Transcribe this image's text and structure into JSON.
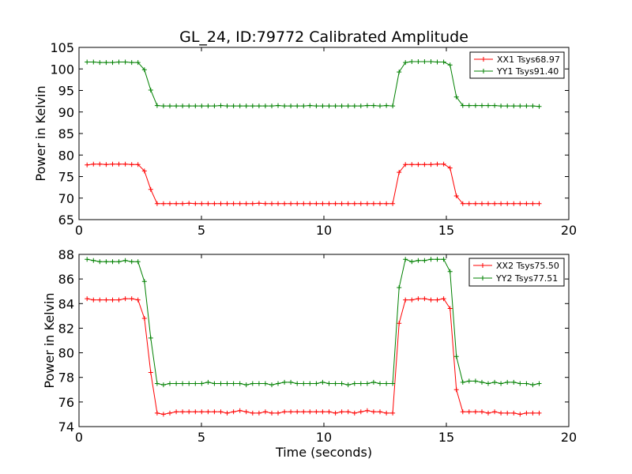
{
  "chart_data": [
    {
      "type": "line",
      "title": "GL_24, ID:79772 Calibrated Amplitude",
      "xlabel": "",
      "ylabel": "Power in Kelvin",
      "xlim": [
        0,
        20
      ],
      "ylim": [
        65,
        105
      ],
      "xticks": [
        0,
        5,
        10,
        15,
        20
      ],
      "yticks": [
        65,
        70,
        75,
        80,
        85,
        90,
        95,
        100,
        105
      ],
      "legend_position": "top-right",
      "grid": false,
      "x": [
        0.33,
        0.59,
        0.85,
        1.11,
        1.37,
        1.63,
        1.89,
        2.15,
        2.41,
        2.67,
        2.93,
        3.19,
        3.45,
        3.71,
        3.97,
        4.23,
        4.49,
        4.75,
        5.01,
        5.27,
        5.53,
        5.79,
        6.05,
        6.31,
        6.57,
        6.83,
        7.09,
        7.35,
        7.61,
        7.87,
        8.13,
        8.39,
        8.65,
        8.91,
        9.17,
        9.43,
        9.69,
        9.95,
        10.21,
        10.47,
        10.73,
        10.99,
        11.25,
        11.51,
        11.77,
        12.03,
        12.29,
        12.55,
        12.81,
        13.07,
        13.33,
        13.59,
        13.85,
        14.11,
        14.37,
        14.63,
        14.89,
        15.15,
        15.41,
        15.67,
        15.93,
        16.19,
        16.45,
        16.71,
        16.97,
        17.23,
        17.49,
        17.75,
        18.01,
        18.27,
        18.53,
        18.79
      ],
      "series": [
        {
          "name": "XX1 Tsys68.97",
          "color": "#ff0000",
          "values": [
            77.7,
            77.9,
            77.9,
            77.8,
            77.9,
            77.9,
            77.9,
            77.8,
            77.8,
            76.3,
            72.0,
            68.7,
            68.7,
            68.7,
            68.7,
            68.7,
            68.8,
            68.7,
            68.7,
            68.7,
            68.7,
            68.7,
            68.7,
            68.7,
            68.7,
            68.7,
            68.7,
            68.8,
            68.7,
            68.7,
            68.7,
            68.7,
            68.7,
            68.7,
            68.7,
            68.7,
            68.7,
            68.7,
            68.7,
            68.7,
            68.7,
            68.7,
            68.7,
            68.7,
            68.7,
            68.7,
            68.7,
            68.7,
            68.7,
            76.0,
            77.8,
            77.8,
            77.8,
            77.8,
            77.8,
            77.9,
            77.9,
            77.0,
            70.5,
            68.7,
            68.7,
            68.7,
            68.7,
            68.7,
            68.7,
            68.7,
            68.7,
            68.7,
            68.7,
            68.7,
            68.7,
            68.7
          ]
        },
        {
          "name": "YY1 Tsys91.40",
          "color": "#008000",
          "values": [
            101.6,
            101.6,
            101.5,
            101.5,
            101.5,
            101.6,
            101.6,
            101.5,
            101.5,
            99.8,
            95.1,
            91.5,
            91.4,
            91.4,
            91.4,
            91.4,
            91.4,
            91.4,
            91.4,
            91.4,
            91.4,
            91.5,
            91.4,
            91.4,
            91.4,
            91.4,
            91.4,
            91.4,
            91.4,
            91.4,
            91.5,
            91.4,
            91.4,
            91.4,
            91.4,
            91.5,
            91.4,
            91.4,
            91.4,
            91.4,
            91.4,
            91.4,
            91.4,
            91.4,
            91.5,
            91.5,
            91.4,
            91.5,
            91.4,
            99.3,
            101.5,
            101.7,
            101.7,
            101.7,
            101.7,
            101.6,
            101.6,
            100.9,
            93.5,
            91.5,
            91.5,
            91.5,
            91.5,
            91.5,
            91.5,
            91.4,
            91.4,
            91.4,
            91.4,
            91.4,
            91.4,
            91.3
          ]
        }
      ]
    },
    {
      "type": "line",
      "title": "",
      "xlabel": "Time (seconds)",
      "ylabel": "Power in Kelvin",
      "xlim": [
        0,
        20
      ],
      "ylim": [
        74,
        88
      ],
      "xticks": [
        0,
        5,
        10,
        15,
        20
      ],
      "yticks": [
        74,
        76,
        78,
        80,
        82,
        84,
        86,
        88
      ],
      "legend_position": "top-right",
      "grid": false,
      "x": [
        0.33,
        0.59,
        0.85,
        1.11,
        1.37,
        1.63,
        1.89,
        2.15,
        2.41,
        2.67,
        2.93,
        3.19,
        3.45,
        3.71,
        3.97,
        4.23,
        4.49,
        4.75,
        5.01,
        5.27,
        5.53,
        5.79,
        6.05,
        6.31,
        6.57,
        6.83,
        7.09,
        7.35,
        7.61,
        7.87,
        8.13,
        8.39,
        8.65,
        8.91,
        9.17,
        9.43,
        9.69,
        9.95,
        10.21,
        10.47,
        10.73,
        10.99,
        11.25,
        11.51,
        11.77,
        12.03,
        12.29,
        12.55,
        12.81,
        13.07,
        13.33,
        13.59,
        13.85,
        14.11,
        14.37,
        14.63,
        14.89,
        15.15,
        15.41,
        15.67,
        15.93,
        16.19,
        16.45,
        16.71,
        16.97,
        17.23,
        17.49,
        17.75,
        18.01,
        18.27,
        18.53,
        18.79
      ],
      "series": [
        {
          "name": "XX2 Tsys75.50",
          "color": "#ff0000",
          "values": [
            84.4,
            84.3,
            84.3,
            84.3,
            84.3,
            84.3,
            84.4,
            84.4,
            84.3,
            82.8,
            78.4,
            75.1,
            75.0,
            75.1,
            75.2,
            75.2,
            75.2,
            75.2,
            75.2,
            75.2,
            75.2,
            75.2,
            75.1,
            75.2,
            75.3,
            75.2,
            75.1,
            75.1,
            75.2,
            75.1,
            75.1,
            75.2,
            75.2,
            75.2,
            75.2,
            75.2,
            75.2,
            75.2,
            75.2,
            75.1,
            75.2,
            75.2,
            75.1,
            75.2,
            75.3,
            75.2,
            75.2,
            75.1,
            75.1,
            82.4,
            84.3,
            84.3,
            84.4,
            84.4,
            84.3,
            84.3,
            84.4,
            83.6,
            77.0,
            75.2,
            75.2,
            75.2,
            75.2,
            75.1,
            75.2,
            75.1,
            75.1,
            75.1,
            75.0,
            75.1,
            75.1,
            75.1
          ]
        },
        {
          "name": "YY2 Tsys77.51",
          "color": "#008000",
          "values": [
            87.6,
            87.5,
            87.4,
            87.4,
            87.4,
            87.4,
            87.5,
            87.4,
            87.4,
            85.8,
            81.2,
            77.5,
            77.4,
            77.5,
            77.5,
            77.5,
            77.5,
            77.5,
            77.5,
            77.6,
            77.5,
            77.5,
            77.5,
            77.5,
            77.5,
            77.4,
            77.5,
            77.5,
            77.5,
            77.4,
            77.5,
            77.6,
            77.6,
            77.5,
            77.5,
            77.5,
            77.5,
            77.6,
            77.5,
            77.5,
            77.5,
            77.4,
            77.5,
            77.5,
            77.5,
            77.6,
            77.5,
            77.5,
            77.5,
            85.3,
            87.6,
            87.4,
            87.5,
            87.5,
            87.6,
            87.6,
            87.6,
            86.6,
            79.7,
            77.6,
            77.7,
            77.7,
            77.6,
            77.5,
            77.6,
            77.5,
            77.6,
            77.6,
            77.5,
            77.5,
            77.4,
            77.5
          ]
        }
      ]
    }
  ]
}
